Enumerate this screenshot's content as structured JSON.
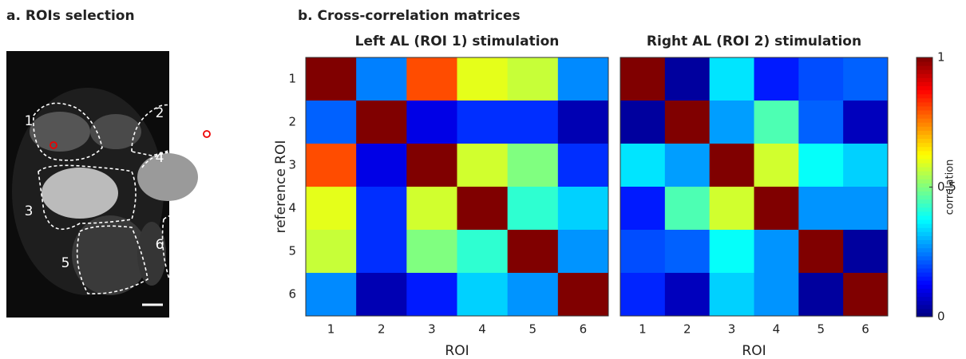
{
  "panel_a": {
    "title": "a. ROIs selection",
    "roi_labels": [
      "1",
      "2",
      "3",
      "4",
      "5",
      "6"
    ]
  },
  "panel_b_title": "b. Cross-correlation matrices",
  "chart_data": [
    {
      "type": "heatmap",
      "title": "Left AL (ROI 1) stimulation",
      "x_label": "ROI",
      "y_label": "reference ROI",
      "x_categories": [
        "1",
        "2",
        "3",
        "4",
        "5",
        "6"
      ],
      "y_categories": [
        "1",
        "2",
        "3",
        "4",
        "5",
        "6"
      ],
      "colormap": "jet",
      "clim": [
        0,
        1
      ],
      "values": [
        [
          1,
          0.25,
          0.8,
          0.6,
          0.57,
          0.26
        ],
        [
          0.22,
          1,
          0.1,
          0.17,
          0.17,
          0.05
        ],
        [
          0.8,
          0.1,
          1,
          0.58,
          0.5,
          0.17
        ],
        [
          0.6,
          0.17,
          0.58,
          1,
          0.42,
          0.33
        ],
        [
          0.57,
          0.17,
          0.5,
          0.42,
          1,
          0.27
        ],
        [
          0.26,
          0.05,
          0.15,
          0.33,
          0.27,
          1
        ]
      ]
    },
    {
      "type": "heatmap",
      "title": "Right AL (ROI 2) stimulation",
      "x_label": "ROI",
      "x_categories": [
        "1",
        "2",
        "3",
        "4",
        "5",
        "6"
      ],
      "colormap": "jet",
      "clim": [
        0,
        1
      ],
      "values": [
        [
          1,
          0.03,
          0.35,
          0.15,
          0.2,
          0.22
        ],
        [
          0.03,
          1,
          0.28,
          0.45,
          0.22,
          0.06
        ],
        [
          0.35,
          0.28,
          1,
          0.58,
          0.38,
          0.33
        ],
        [
          0.15,
          0.45,
          0.58,
          1,
          0.27,
          0.27
        ],
        [
          0.2,
          0.22,
          0.38,
          0.27,
          1,
          0.03
        ],
        [
          0.16,
          0.06,
          0.33,
          0.27,
          0.03,
          1
        ]
      ],
      "colorbar": {
        "label": "correlation",
        "lim": [
          0,
          1
        ],
        "ticks": [
          0,
          0.5,
          1
        ]
      }
    }
  ]
}
